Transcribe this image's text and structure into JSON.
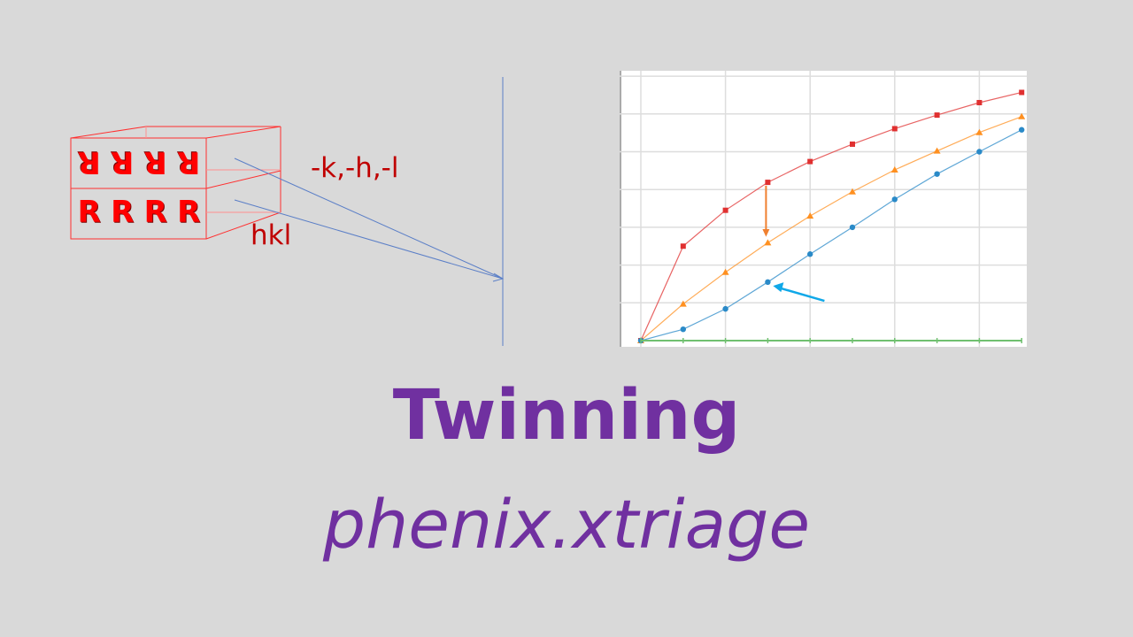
{
  "diagram": {
    "crystal_letters_top": [
      "R",
      "R",
      "R",
      "R"
    ],
    "crystal_letters_bottom": [
      "R",
      "R",
      "R",
      "R"
    ],
    "label_twin": "-k,-h,-l",
    "label_original": "hkl",
    "colors": {
      "crystal": "#ff0000",
      "label": "#c00000",
      "rays": "#5b7fc7"
    }
  },
  "chart_data": {
    "type": "line",
    "title": "",
    "xlabel": "",
    "ylabel": "",
    "x": [
      0,
      1,
      2,
      3,
      4,
      5,
      6,
      7,
      8,
      9
    ],
    "xlim": [
      -0.5,
      9
    ],
    "ylim": [
      0,
      7
    ],
    "grid": true,
    "series": [
      {
        "color": "#e03030",
        "marker": "square",
        "values": [
          0,
          2.5,
          3.45,
          4.19,
          4.74,
          5.2,
          5.61,
          5.97,
          6.3,
          6.57
        ]
      },
      {
        "color": "#ff9020",
        "marker": "triangle",
        "values": [
          0,
          0.97,
          1.81,
          2.59,
          3.3,
          3.94,
          4.52,
          5.02,
          5.51,
          5.93
        ]
      },
      {
        "color": "#2a8ac8",
        "marker": "circle",
        "values": [
          0,
          0.3,
          0.84,
          1.55,
          2.29,
          3.0,
          3.74,
          4.41,
          5.0,
          5.58
        ]
      },
      {
        "color": "#70c070",
        "marker": "tick",
        "values": [
          0,
          0,
          0,
          0,
          0,
          0,
          0,
          0,
          0,
          0
        ]
      }
    ],
    "annotations": [
      {
        "type": "arrow",
        "color": "#f08030",
        "direction": "down",
        "at_x": 3
      },
      {
        "type": "arrow",
        "color": "#10a8e8",
        "direction": "left",
        "at_x": 3
      }
    ]
  },
  "title": "Twinning",
  "subtitle": "phenix.xtriage"
}
